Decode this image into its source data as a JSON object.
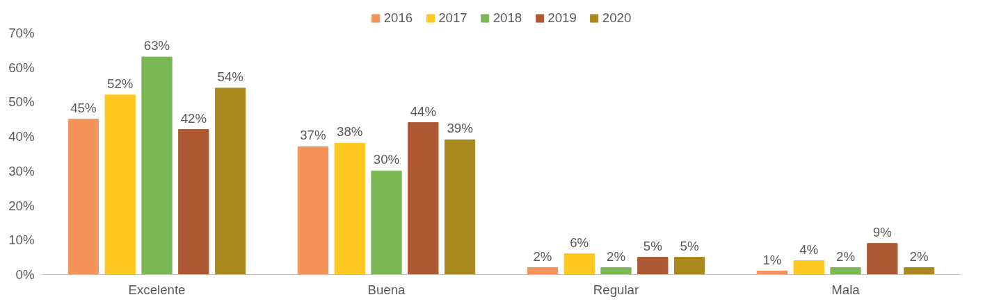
{
  "chart_data": {
    "type": "bar",
    "categories": [
      "Excelente",
      "Buena",
      "Regular",
      "Mala"
    ],
    "series": [
      {
        "name": "2016",
        "color": "#f4935a",
        "values": [
          45,
          37,
          2,
          1
        ],
        "value_labels": [
          "45%",
          "37%",
          "2%",
          "1%"
        ]
      },
      {
        "name": "2017",
        "color": "#ffc820",
        "values": [
          52,
          38,
          6,
          4
        ],
        "value_labels": [
          "52%",
          "38%",
          "6%",
          "4%"
        ]
      },
      {
        "name": "2018",
        "color": "#7cb956",
        "values": [
          63,
          30,
          2,
          2
        ],
        "value_labels": [
          "63%",
          "30%",
          "2%",
          "2%"
        ]
      },
      {
        "name": "2019",
        "color": "#ad5a34",
        "values": [
          42,
          44,
          5,
          9
        ],
        "value_labels": [
          "42%",
          "44%",
          "5%",
          "9%"
        ]
      },
      {
        "name": "2020",
        "color": "#aa8a1e",
        "values": [
          54,
          39,
          5,
          2
        ],
        "value_labels": [
          "54%",
          "39%",
          "5%",
          "2%"
        ]
      }
    ],
    "ylim": [
      0,
      70
    ],
    "yticks": [
      {
        "value": 0,
        "label": "0%"
      },
      {
        "value": 10,
        "label": "10%"
      },
      {
        "value": 20,
        "label": "20%"
      },
      {
        "value": 30,
        "label": "30%"
      },
      {
        "value": 40,
        "label": "40%"
      },
      {
        "value": 50,
        "label": "50%"
      },
      {
        "value": 60,
        "label": "60%"
      },
      {
        "value": 70,
        "label": "70%"
      }
    ],
    "grid": false,
    "legend": "top"
  }
}
